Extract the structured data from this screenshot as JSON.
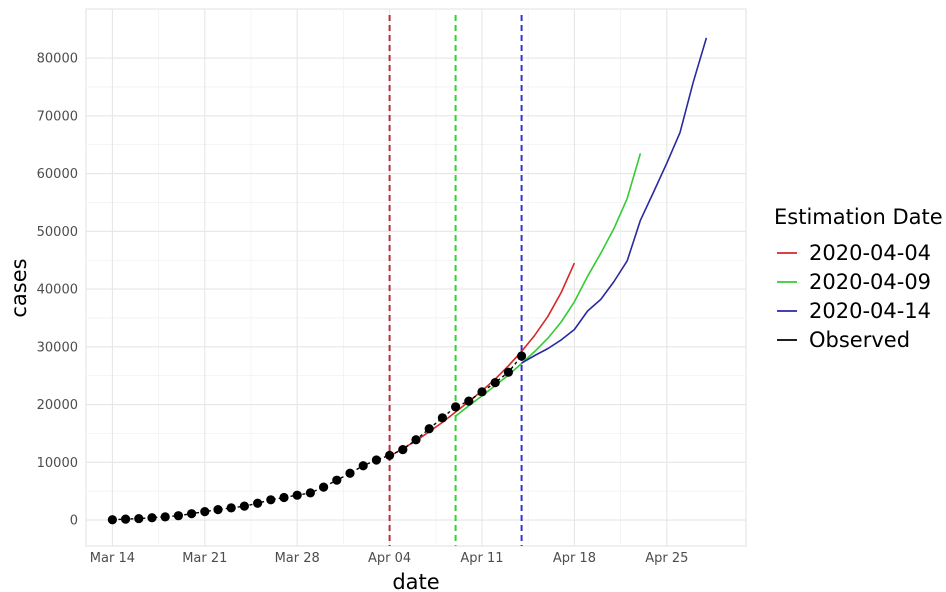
{
  "chart_data": {
    "type": "line",
    "xlabel": "date",
    "ylabel": "cases",
    "x_ticks": [
      "Mar 14",
      "Mar 21",
      "Mar 28",
      "Apr 04",
      "Apr 11",
      "Apr 18",
      "Apr 25"
    ],
    "x_tick_dates": [
      "2020-03-14",
      "2020-03-21",
      "2020-03-28",
      "2020-04-04",
      "2020-04-11",
      "2020-04-18",
      "2020-04-25"
    ],
    "y_ticks": [
      0,
      10000,
      20000,
      30000,
      40000,
      50000,
      60000,
      70000,
      80000
    ],
    "xlim": [
      "2020-03-12",
      "2020-05-01"
    ],
    "ylim": [
      -4500,
      88500
    ],
    "grid": true,
    "legend": {
      "title": "Estimation Date",
      "position": "right",
      "entries": [
        "2020-04-04",
        "2020-04-09",
        "2020-04-14",
        "Observed"
      ]
    },
    "vlines": [
      {
        "date": "2020-04-04",
        "color": "#b2313d",
        "style": "dashed"
      },
      {
        "date": "2020-04-09",
        "color": "#2ed52e",
        "style": "dashed"
      },
      {
        "date": "2020-04-14",
        "color": "#3434d0",
        "style": "dashed"
      }
    ],
    "series": [
      {
        "name": "2020-04-04",
        "color": "#d62828",
        "x": [
          "2020-04-04",
          "2020-04-05",
          "2020-04-06",
          "2020-04-07",
          "2020-04-08",
          "2020-04-09",
          "2020-04-10",
          "2020-04-11",
          "2020-04-12",
          "2020-04-13",
          "2020-04-14",
          "2020-04-15",
          "2020-04-16",
          "2020-04-17",
          "2020-04-18"
        ],
        "y": [
          11000,
          12400,
          13700,
          15300,
          16900,
          18700,
          20500,
          22400,
          24400,
          26700,
          29200,
          32000,
          35300,
          39400,
          44500
        ]
      },
      {
        "name": "2020-04-09",
        "color": "#33cc33",
        "x": [
          "2020-04-09",
          "2020-04-10",
          "2020-04-11",
          "2020-04-12",
          "2020-04-13",
          "2020-04-14",
          "2020-04-15",
          "2020-04-16",
          "2020-04-17",
          "2020-04-18",
          "2020-04-19",
          "2020-04-20",
          "2020-04-21",
          "2020-04-22",
          "2020-04-23"
        ],
        "y": [
          18000,
          19800,
          21500,
          23300,
          25100,
          27100,
          29200,
          31500,
          34300,
          37800,
          42200,
          46200,
          50500,
          55700,
          63500
        ]
      },
      {
        "name": "2020-04-14",
        "color": "#2a2aa0",
        "x": [
          "2020-04-14",
          "2020-04-15",
          "2020-04-16",
          "2020-04-17",
          "2020-04-18",
          "2020-04-19",
          "2020-04-20",
          "2020-04-21",
          "2020-04-22",
          "2020-04-23",
          "2020-04-24",
          "2020-04-25",
          "2020-04-26",
          "2020-04-27",
          "2020-04-28"
        ],
        "y": [
          27200,
          28500,
          29700,
          31200,
          33000,
          36200,
          38200,
          41300,
          44900,
          51900,
          56800,
          61800,
          67100,
          75800,
          83500
        ]
      },
      {
        "name": "Observed",
        "color": "#000000",
        "x": [
          "2020-03-14",
          "2020-03-15",
          "2020-03-16",
          "2020-03-17",
          "2020-03-18",
          "2020-03-19",
          "2020-03-20",
          "2020-03-21",
          "2020-03-22",
          "2020-03-23",
          "2020-03-24",
          "2020-03-25",
          "2020-03-26",
          "2020-03-27",
          "2020-03-28",
          "2020-03-29",
          "2020-03-30",
          "2020-03-31",
          "2020-04-01",
          "2020-04-02",
          "2020-04-03",
          "2020-04-04",
          "2020-04-05",
          "2020-04-06",
          "2020-04-07",
          "2020-04-08",
          "2020-04-09",
          "2020-04-10",
          "2020-04-11",
          "2020-04-12",
          "2020-04-13",
          "2020-04-14"
        ],
        "y": [
          50,
          150,
          250,
          400,
          550,
          750,
          1100,
          1450,
          1800,
          2100,
          2400,
          2900,
          3500,
          3900,
          4300,
          4700,
          5700,
          6900,
          8100,
          9400,
          10400,
          11200,
          12200,
          13900,
          15800,
          17700,
          19600,
          20600,
          22200,
          23800,
          25600,
          28400
        ]
      }
    ]
  }
}
